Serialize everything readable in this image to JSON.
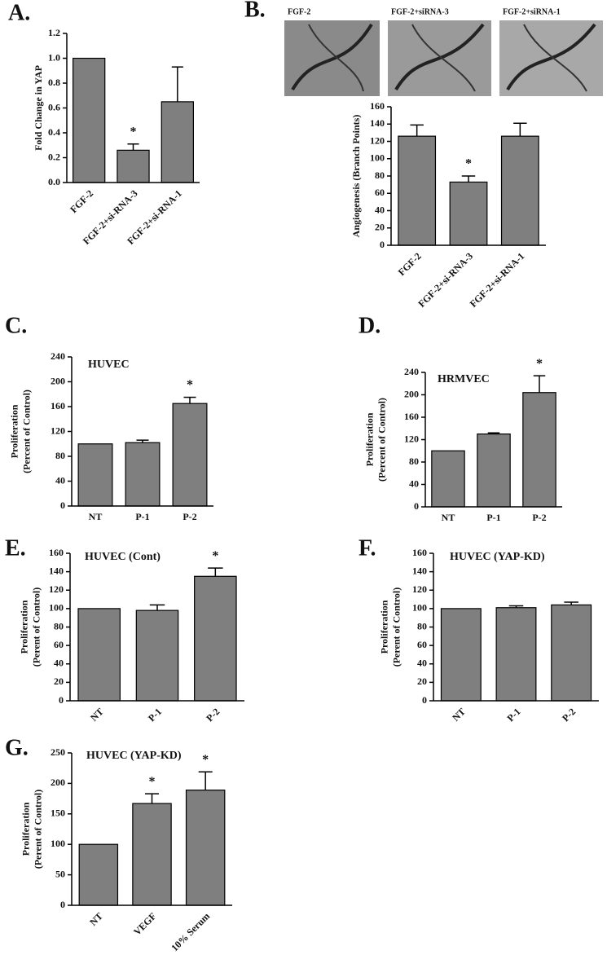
{
  "chart_data": [
    {
      "type": "bar",
      "panel": "A.",
      "ylabel": [
        "Fold Change in YAP"
      ],
      "categories": [
        "FGF-2",
        "FGF-2+si-RNA-3",
        "FGF-2+si-RNA-1"
      ],
      "values": [
        1.0,
        0.26,
        0.65
      ],
      "errors": [
        0,
        0.05,
        0.28
      ],
      "significance": [
        null,
        "*",
        null
      ],
      "color": "#7f7f7f",
      "ylim": [
        0,
        1.2
      ],
      "yticks": [
        {
          "value": 0,
          "label": "0.0"
        },
        0.2,
        0.4,
        0.6,
        0.8,
        {
          "value": 1,
          "label": "1.0"
        },
        1.2
      ]
    },
    {
      "type": "bar",
      "panel": "B.",
      "image_labels": [
        "FGF-2",
        "FGF-2+siRNA-3",
        "FGF-2+siRNA-1"
      ],
      "ylabel": [
        "Angiogenesis (Branch Points)"
      ],
      "categories": [
        "FGF-2",
        "FGF-2+si-RNA-3",
        "FGF-2+si-RNA-1"
      ],
      "values": [
        126,
        73,
        126
      ],
      "errors": [
        13,
        7,
        15
      ],
      "significance": [
        null,
        "*",
        null
      ],
      "color": "#7f7f7f",
      "ylim": [
        0,
        160
      ],
      "yticks": [
        0,
        20,
        40,
        60,
        80,
        100,
        120,
        140,
        160
      ]
    },
    {
      "type": "bar",
      "panel": "C.",
      "title": "HUVEC",
      "ylabel": [
        "Proliferation",
        "(Percent of Control)"
      ],
      "categories": [
        "NT",
        "P-1",
        "P-2"
      ],
      "values": [
        100,
        102,
        165
      ],
      "errors": [
        0,
        4,
        10
      ],
      "significance": [
        null,
        null,
        "*"
      ],
      "color": "#7f7f7f",
      "ylim": [
        0,
        240
      ],
      "yticks": [
        0,
        40,
        80,
        120,
        160,
        200,
        240
      ]
    },
    {
      "type": "bar",
      "panel": "D.",
      "title": "HRMVEC",
      "ylabel": [
        "Proliferation",
        "(Percent of Control)"
      ],
      "categories": [
        "NT",
        "P-1",
        "P-2"
      ],
      "values": [
        100,
        130,
        204
      ],
      "errors": [
        0,
        2,
        30
      ],
      "significance": [
        null,
        null,
        "*"
      ],
      "color": "#7f7f7f",
      "ylim": [
        0,
        240
      ],
      "yticks": [
        0,
        40,
        80,
        120,
        160,
        200,
        240
      ]
    },
    {
      "type": "bar",
      "panel": "E.",
      "title": "HUVEC (Cont)",
      "ylabel": [
        "Proliferation",
        "(Perent of Control)"
      ],
      "categories": [
        "NT",
        "P-1",
        "P-2"
      ],
      "values": [
        100,
        98,
        135
      ],
      "errors": [
        0,
        6,
        9
      ],
      "significance": [
        null,
        null,
        "*"
      ],
      "color": "#7f7f7f",
      "ylim": [
        0,
        160
      ],
      "yticks": [
        0,
        20,
        40,
        60,
        80,
        100,
        120,
        140,
        160
      ]
    },
    {
      "type": "bar",
      "panel": "F.",
      "title": "HUVEC (YAP-KD)",
      "ylabel": [
        "Proliferation",
        "(Perent of Control)"
      ],
      "categories": [
        "NT",
        "P-1",
        "P-2"
      ],
      "values": [
        100,
        101,
        104
      ],
      "errors": [
        0,
        2,
        3
      ],
      "color": "#7f7f7f",
      "ylim": [
        0,
        160
      ],
      "yticks": [
        0,
        20,
        40,
        60,
        80,
        100,
        120,
        140,
        160
      ]
    },
    {
      "type": "bar",
      "panel": "G.",
      "title": "HUVEC (YAP-KD)",
      "ylabel": [
        "Proliferation",
        "(Perent of Control)"
      ],
      "categories": [
        "NT",
        "VEGF",
        "10% Serum"
      ],
      "values": [
        100,
        167,
        189
      ],
      "errors": [
        0,
        16,
        30
      ],
      "significance": [
        null,
        "*",
        "*"
      ],
      "color": "#7f7f7f",
      "ylim": [
        0,
        250
      ],
      "yticks": [
        0,
        50,
        100,
        150,
        200,
        250
      ]
    }
  ]
}
